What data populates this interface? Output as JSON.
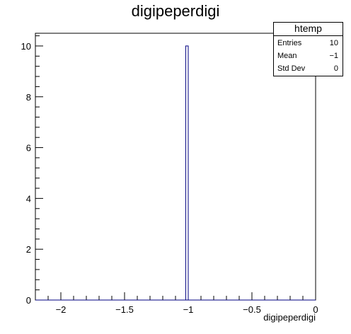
{
  "chart_data": {
    "type": "bar",
    "title": "digipeperdigi",
    "xlabel": "digipeperdigi",
    "ylabel": "",
    "xlim": [
      -2.2,
      0.0
    ],
    "ylim": [
      0,
      10.5
    ],
    "bins": [
      {
        "low": -1.02,
        "high": -1.0,
        "count": 10
      }
    ],
    "x_ticks": [
      -2,
      -1.5,
      -1,
      -0.5,
      0
    ],
    "x_tick_labels": [
      "−2",
      "−1.5",
      "−1",
      "−0.5",
      "0"
    ],
    "y_ticks": [
      0,
      2,
      4,
      6,
      8,
      10
    ],
    "y_tick_labels": [
      "0",
      "2",
      "4",
      "6",
      "8",
      "10"
    ],
    "grid": false,
    "bar_fill": "#ffffff",
    "bar_stroke": "#000080"
  },
  "stats_box": {
    "title": "htemp",
    "rows": [
      {
        "label": "Entries",
        "value": "10"
      },
      {
        "label": "Mean",
        "value": "−1"
      },
      {
        "label": "Std Dev",
        "value": "0"
      }
    ]
  }
}
